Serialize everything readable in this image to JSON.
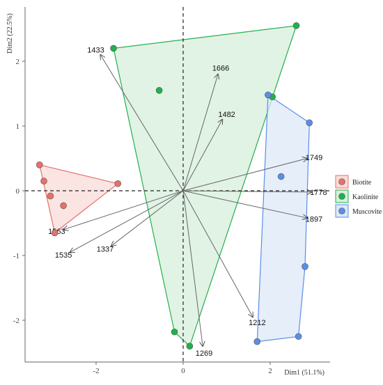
{
  "chart_data": {
    "type": "scatter",
    "title": "",
    "xlabel": "Dim1 (51.1%)",
    "ylabel": "Dim2 (22.5%)",
    "xlim": [
      -3.5,
      3.4
    ],
    "ylim": [
      -2.65,
      2.75
    ],
    "xticks": [
      -2,
      0,
      2
    ],
    "yticks": [
      -2,
      -1,
      0,
      1,
      2
    ],
    "reference_lines": {
      "x": 0,
      "y": 0,
      "style": "dashed"
    },
    "legend": {
      "placement": "right"
    },
    "series": [
      {
        "name": "Biotite",
        "color": "#e8706a",
        "fill": "#f9dcd9",
        "hull": true,
        "points": [
          {
            "x": -3.3,
            "y": 0.4
          },
          {
            "x": -3.2,
            "y": 0.15
          },
          {
            "x": -3.05,
            "y": -0.08
          },
          {
            "x": -2.75,
            "y": -0.23
          },
          {
            "x": -2.95,
            "y": -0.65
          },
          {
            "x": -1.5,
            "y": 0.11
          }
        ]
      },
      {
        "name": "Kaolinite",
        "color": "#22b04b",
        "fill": "#d7efdc",
        "hull": true,
        "points": [
          {
            "x": -1.6,
            "y": 2.2
          },
          {
            "x": 2.6,
            "y": 2.55
          },
          {
            "x": 2.05,
            "y": 1.45
          },
          {
            "x": -0.55,
            "y": 1.55
          },
          {
            "x": -0.2,
            "y": -2.18
          },
          {
            "x": 0.15,
            "y": -2.4
          }
        ]
      },
      {
        "name": "Muscovite",
        "color": "#5b8ee6",
        "fill": "#dde8f8",
        "hull": true,
        "points": [
          {
            "x": 1.95,
            "y": 1.48
          },
          {
            "x": 2.9,
            "y": 1.05
          },
          {
            "x": 2.25,
            "y": 0.22
          },
          {
            "x": 2.8,
            "y": -1.17
          },
          {
            "x": 2.65,
            "y": -2.25
          },
          {
            "x": 1.7,
            "y": -2.33
          }
        ]
      }
    ],
    "vectors": [
      {
        "label": "1433",
        "x": -1.9,
        "y": 2.1
      },
      {
        "label": "1666",
        "x": 0.8,
        "y": 1.8
      },
      {
        "label": "1482",
        "x": 0.9,
        "y": 1.1
      },
      {
        "label": "1749",
        "x": 2.85,
        "y": 0.5
      },
      {
        "label": "1778",
        "x": 2.95,
        "y": -0.02
      },
      {
        "label": "1897",
        "x": 2.85,
        "y": -0.42
      },
      {
        "label": "1212",
        "x": 1.6,
        "y": -1.95
      },
      {
        "label": "1269",
        "x": 0.45,
        "y": -2.4
      },
      {
        "label": "1337",
        "x": -1.65,
        "y": -0.85
      },
      {
        "label": "1535",
        "x": -2.6,
        "y": -0.95
      },
      {
        "label": "1563",
        "x": -2.75,
        "y": -0.6
      }
    ]
  }
}
